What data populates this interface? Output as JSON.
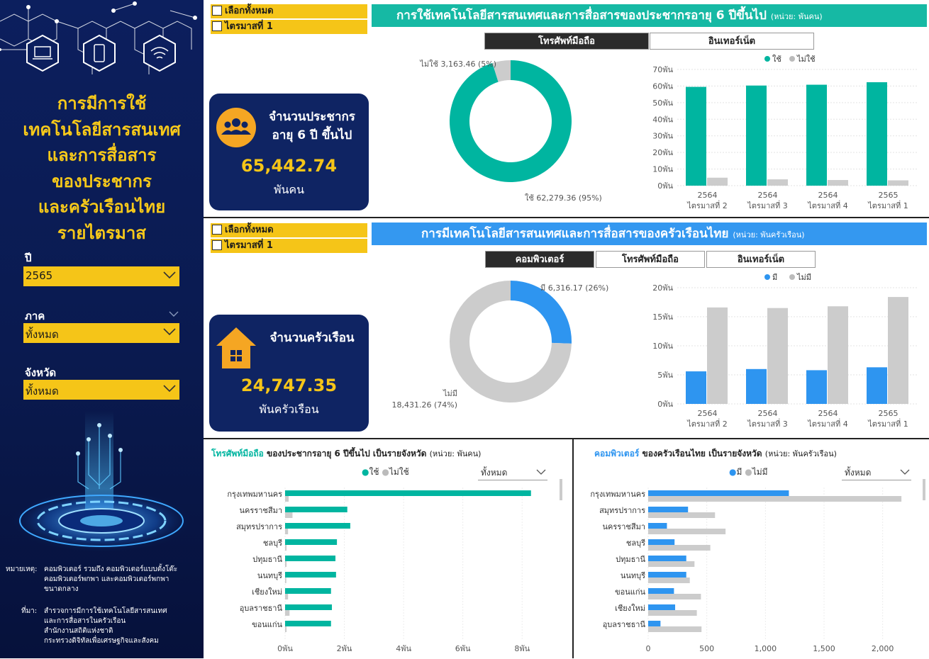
{
  "sidebar": {
    "title_lines": [
      "การมีการใช้",
      "เทคโนโลยีสารสนเทศ",
      "และการสื่อสาร",
      "ของประชากร",
      "และครัวเรือนไทย",
      "รายไตรมาส"
    ],
    "year_label": "ปี",
    "year_value": "2565",
    "region_label": "ภาค",
    "region_value": "ทั้งหมด",
    "province_label": "จังหวัด",
    "province_value": "ทั้งหมด",
    "note_label": "หมายเหตุ:",
    "note_lines": [
      "คอมพิวเตอร์ รวมถึง คอมพิวเตอร์แบบตั้งโต๊ะ",
      "คอมพิวเตอร์พกพา และคอมพิวเตอร์พกพา",
      "ขนาดกลาง"
    ],
    "source_label": "ที่มา:",
    "source_lines": [
      "สำรวจการมีการใช้เทคโนโลยีสารสนเทศ",
      "และการสื่อสารในครัวเรือน",
      "สำนักงานสถิติแห่งชาติ",
      "กระทรวงดิจิทัลเพื่อเศรษฐกิจและสังคม"
    ]
  },
  "top": {
    "select_all": "เลือกทั้งหมด",
    "quarter": "ไตรมาสที่ 1",
    "banner": "การใช้เทคโนโลยีสารสนเทศและการสื่อสารของประชากรอายุ 6 ปีขึ้นไป",
    "banner_unit": "(หน่วย: พันคน)",
    "tab_active": "โทรศัพท์มือถือ",
    "tab_other": "อินเทอร์เน็ต",
    "kpi_line1": "จำนวนประชากร",
    "kpi_line2": "อายุ 6 ปี ขึ้นไป",
    "kpi_value": "65,442.74",
    "kpi_unit": "พันคน",
    "donut_label_a": "ไม่ใช้ 3,163.46 (5%)",
    "donut_label_b": "ใช้ 62,279.36 (95%)",
    "legend_a": "ใช้",
    "legend_b": "ไม่ใช้"
  },
  "middle": {
    "select_all": "เลือกทั้งหมด",
    "quarter": "ไตรมาสที่ 1",
    "banner": "การมีเทคโนโลยีสารสนเทศและการสื่อสารของครัวเรือนไทย",
    "banner_unit": "(หน่วย: พันครัวเรือน)",
    "tab_active": "คอมพิวเตอร์",
    "tab_2": "โทรศัพท์มือถือ",
    "tab_3": "อินเทอร์เน็ต",
    "kpi_line1": "จำนวนครัวเรือน",
    "kpi_value": "24,747.35",
    "kpi_unit": "พันครัวเรือน",
    "donut_label_a": "มี 6,316.17 (26%)",
    "donut_label_b1": "ไม่มี",
    "donut_label_b2": "18,431.26 (74%)",
    "legend_a": "มี",
    "legend_b": "ไม่มี"
  },
  "bottom_left": {
    "title_accent": "โทรศัพท์มือถือ",
    "title_rest": "ของประชากรอายุ 6 ปีขึ้นไป เป็นรายจังหวัด",
    "title_unit": "(หน่วย: พันคน)",
    "legend_a": "ใช้",
    "legend_b": "ไม่ใช้",
    "dropdown": "ทั้งหมด"
  },
  "bottom_right": {
    "title_accent": "คอมพิวเตอร์",
    "title_rest": "ของครัวเรือนไทย เป็นรายจังหวัด",
    "title_unit": "(หน่วย: พันครัวเรือน)",
    "legend_a": "มี",
    "legend_b": "ไม่มี",
    "dropdown": "ทั้งหมด"
  },
  "colors": {
    "teal": "#00b5a0",
    "blue": "#2e95f0",
    "gray": "#cccccc",
    "navy": "#0f2463",
    "yellow": "#f5c518"
  },
  "chart_data": [
    {
      "type": "pie",
      "id": "mobile-donut",
      "categories": [
        "ใช้",
        "ไม่ใช้"
      ],
      "values": [
        62279.36,
        3163.46
      ]
    },
    {
      "type": "bar",
      "id": "mobile-quarterly",
      "categories": [
        [
          "2564",
          "ไตรมาสที่ 2"
        ],
        [
          "2564",
          "ไตรมาสที่ 3"
        ],
        [
          "2564",
          "ไตรมาสที่ 4"
        ],
        [
          "2565",
          "ไตรมาสที่ 1"
        ]
      ],
      "series": [
        {
          "name": "ใช้",
          "values": [
            59.5,
            60.3,
            60.8,
            62.3
          ]
        },
        {
          "name": "ไม่ใช้",
          "values": [
            4.8,
            3.8,
            3.4,
            3.2
          ]
        }
      ],
      "yticks": [
        "0พัน",
        "10พัน",
        "20พัน",
        "30พัน",
        "40พัน",
        "50พัน",
        "60พัน",
        "70พัน"
      ],
      "ylim": [
        0,
        70
      ]
    },
    {
      "type": "pie",
      "id": "computer-donut",
      "categories": [
        "มี",
        "ไม่มี"
      ],
      "values": [
        6316.17,
        18431.26
      ]
    },
    {
      "type": "bar",
      "id": "computer-quarterly",
      "categories": [
        [
          "2564",
          "ไตรมาสที่ 2"
        ],
        [
          "2564",
          "ไตรมาสที่ 3"
        ],
        [
          "2564",
          "ไตรมาสที่ 4"
        ],
        [
          "2565",
          "ไตรมาสที่ 1"
        ]
      ],
      "series": [
        {
          "name": "มี",
          "values": [
            5.6,
            6.0,
            5.8,
            6.3
          ]
        },
        {
          "name": "ไม่มี",
          "values": [
            16.6,
            16.5,
            16.8,
            18.4
          ]
        }
      ],
      "yticks": [
        "0พัน",
        "5พัน",
        "10พัน",
        "15พัน",
        "20พัน"
      ],
      "ylim": [
        0,
        20
      ]
    },
    {
      "type": "bar",
      "id": "mobile-province",
      "orientation": "horizontal",
      "categories": [
        "กรุงเทพมหานคร",
        "นครราชสีมา",
        "สมุทรปราการ",
        "ชลบุรี",
        "ปทุมธานี",
        "นนทบุรี",
        "เชียงใหม่",
        "อุบลราชธานี",
        "ขอนแก่น"
      ],
      "series": [
        {
          "name": "ใช้",
          "values": [
            8.3,
            2.1,
            2.2,
            1.75,
            1.7,
            1.72,
            1.55,
            1.58,
            1.55
          ]
        },
        {
          "name": "ไม่ใช้",
          "values": [
            0.12,
            0.25,
            0.1,
            0.05,
            0.05,
            0.04,
            0.1,
            0.15,
            0.05
          ]
        }
      ],
      "xticks": [
        "0พัน",
        "2พัน",
        "4พัน",
        "6พัน",
        "8พัน"
      ],
      "xlim": [
        0,
        9
      ]
    },
    {
      "type": "bar",
      "id": "computer-province",
      "orientation": "horizontal",
      "categories": [
        "กรุงเทพมหานคร",
        "สมุทรปราการ",
        "นครราชสีมา",
        "ชลบุรี",
        "ปทุมธานี",
        "นนทบุรี",
        "ขอนแก่น",
        "เชียงใหม่",
        "อุบลราชธานี"
      ],
      "series": [
        {
          "name": "มี",
          "values": [
            1200,
            340,
            160,
            225,
            325,
            325,
            220,
            230,
            105
          ]
        },
        {
          "name": "ไม่มี",
          "values": [
            2160,
            570,
            660,
            530,
            395,
            355,
            450,
            415,
            455
          ]
        }
      ],
      "xticks": [
        "0",
        "500",
        "1,000",
        "1,500",
        "2,000"
      ],
      "xlim": [
        0,
        2250
      ]
    }
  ]
}
